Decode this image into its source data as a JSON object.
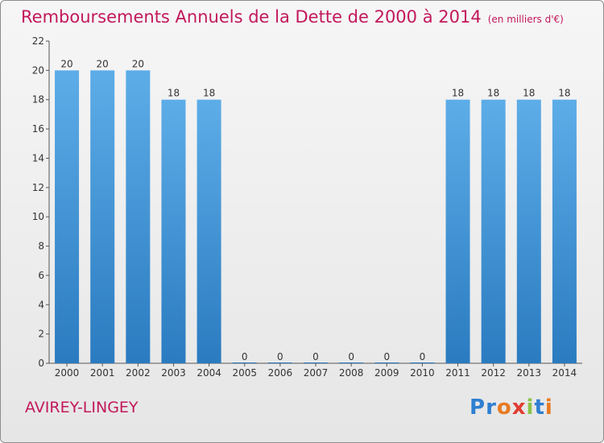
{
  "title": "Remboursements Annuels de la Dette de 2000 à 2014",
  "subtitle": "(en milliers d'€)",
  "commune": "AVIREY-LINGEY",
  "logo": {
    "text": "Proxiti",
    "letter_colors": [
      "#2f7fd1",
      "#2f7fd1",
      "#e87a1f",
      "#e03c31",
      "#8bc34a",
      "#2f7fd1",
      "#e87a1f"
    ]
  },
  "colors": {
    "title": "#c2185b",
    "bar_top": "#5dade8",
    "bar_bottom": "#2a7bc0"
  },
  "chart_data": {
    "type": "bar",
    "title": "Remboursements Annuels de la Dette de 2000 à 2014",
    "subtitle": "(en milliers d'€)",
    "xlabel": "",
    "ylabel": "",
    "categories": [
      "2000",
      "2001",
      "2002",
      "2003",
      "2004",
      "2005",
      "2006",
      "2007",
      "2008",
      "2009",
      "2010",
      "2011",
      "2012",
      "2013",
      "2014"
    ],
    "values": [
      20,
      20,
      20,
      18,
      18,
      0,
      0,
      0,
      0,
      0,
      0,
      18,
      18,
      18,
      18
    ],
    "ylim": [
      0,
      22
    ],
    "yticks": [
      0,
      2,
      4,
      6,
      8,
      10,
      12,
      14,
      16,
      18,
      20,
      22
    ],
    "grid": false,
    "legend": "none"
  }
}
